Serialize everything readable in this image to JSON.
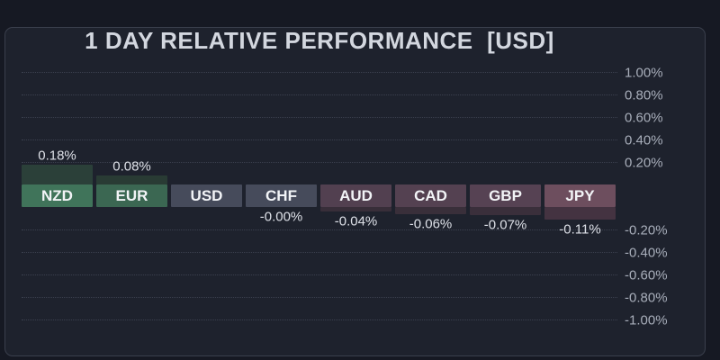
{
  "page": {
    "title": "1 DAY RELATIVE PERFORMANCE  [USD]"
  },
  "chart_data": {
    "type": "bar",
    "title": "1 DAY RELATIVE PERFORMANCE  [USD]",
    "unit": "%",
    "orientation": "vertical",
    "grid": "dotted-horizontal",
    "axis_side": "right",
    "ylim": [
      -1.0,
      1.0
    ],
    "categories": [
      "NZD",
      "EUR",
      "USD",
      "CHF",
      "AUD",
      "CAD",
      "GBP",
      "JPY"
    ],
    "values": [
      0.18,
      0.08,
      0,
      0,
      -0.04,
      -0.06,
      -0.07,
      -0.11
    ],
    "value_labels": [
      "0.18%",
      "0.08%",
      "",
      "-0.00%",
      "-0.04%",
      "-0.06%",
      "-0.07%",
      "-0.11%"
    ],
    "axis_ticks": [
      {
        "value": 1.0,
        "label": "1.00%"
      },
      {
        "value": 0.8,
        "label": "0.80%"
      },
      {
        "value": 0.6,
        "label": "0.60%"
      },
      {
        "value": 0.4,
        "label": "0.40%"
      },
      {
        "value": 0.2,
        "label": "0.20%"
      },
      {
        "value": -0.2,
        "label": "-0.20%"
      },
      {
        "value": -0.4,
        "label": "-0.40%"
      },
      {
        "value": -0.6,
        "label": "-0.60%"
      },
      {
        "value": -0.8,
        "label": "-0.80%"
      },
      {
        "value": -1.0,
        "label": "-1.00%"
      }
    ],
    "box_colors": [
      "#40745a",
      "#3b6752",
      "#464b5b",
      "#464b5b",
      "#524050",
      "#544151",
      "#564253",
      "#6d4e5e"
    ],
    "bar_colors": [
      "#2b4039",
      "#293b34",
      "#1e222d",
      "#1e222d",
      "#382e39",
      "#392f3a",
      "#3a2f3b",
      "#443341"
    ],
    "colors": {
      "positive_box": "#40745a",
      "neutral_box": "#464b5b",
      "negative_box": "#564253",
      "background": "#1e222d",
      "grid": "#3b404e",
      "axis_text": "#a8aeba",
      "value_text": "#dde0e7"
    }
  }
}
